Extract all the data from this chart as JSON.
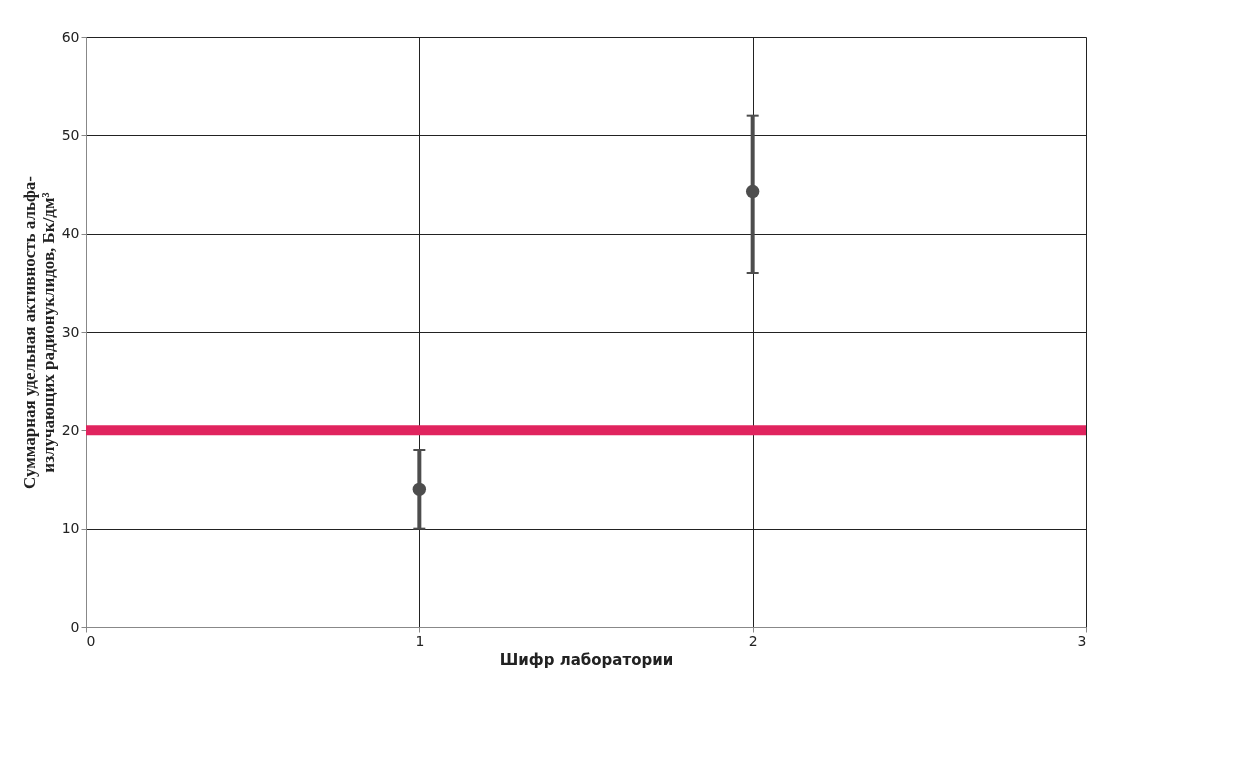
{
  "chart_data": {
    "type": "scatter",
    "xlabel": "Шифр лаборатории",
    "ylabel": "Суммарная удельная активность альфа-\nизлучающих радионуклидов, Бк/дм³",
    "x": [
      1,
      2
    ],
    "series": [
      {
        "color": "#4d4d4d",
        "values": [
          14,
          44.3
        ],
        "errors": [
          [
            10,
            18
          ],
          [
            36,
            52
          ]
        ]
      }
    ],
    "xlim": [
      0,
      3
    ],
    "xticks": [
      0,
      1,
      2,
      3
    ],
    "ylim": [
      0,
      60
    ],
    "yticks": [
      0,
      10,
      20,
      30,
      40,
      50,
      60
    ],
    "ref_lines": [
      {
        "axis": "y",
        "value": 20,
        "color": "#e0245e"
      }
    ],
    "grid": true,
    "marker": "circle"
  }
}
